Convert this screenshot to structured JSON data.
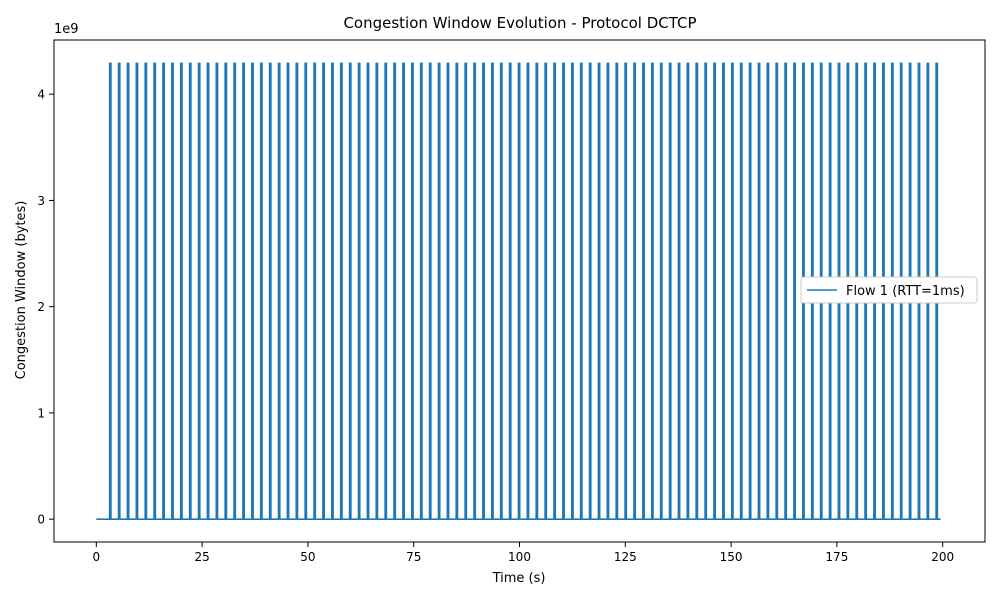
{
  "chart_data": {
    "type": "line",
    "title": "Congestion Window Evolution - Protocol DCTCP",
    "xlabel": "Time (s)",
    "ylabel": "Congestion Window (bytes)",
    "y_scale_label": "1e9",
    "xlim": [
      -10,
      210
    ],
    "ylim": [
      -0.215,
      4.51
    ],
    "y_unit_multiplier": 1000000000,
    "xticks": [
      0,
      25,
      50,
      75,
      100,
      125,
      150,
      175,
      200
    ],
    "xtick_labels": [
      "0",
      "25",
      "50",
      "75",
      "100",
      "125",
      "150",
      "175",
      "200"
    ],
    "yticks": [
      0,
      1,
      2,
      3,
      4
    ],
    "ytick_labels": [
      "0",
      "1",
      "2",
      "3",
      "4"
    ],
    "grid": false,
    "legend_position": "center-right",
    "series": [
      {
        "name": "Flow 1 (RTT=1ms)",
        "color": "#1f77b4",
        "baseline": 0,
        "peak": 4.29,
        "first_spike": 3.15,
        "spike_period": 2.1,
        "spike_width": 0.3,
        "t_end": 199.5
      }
    ]
  }
}
